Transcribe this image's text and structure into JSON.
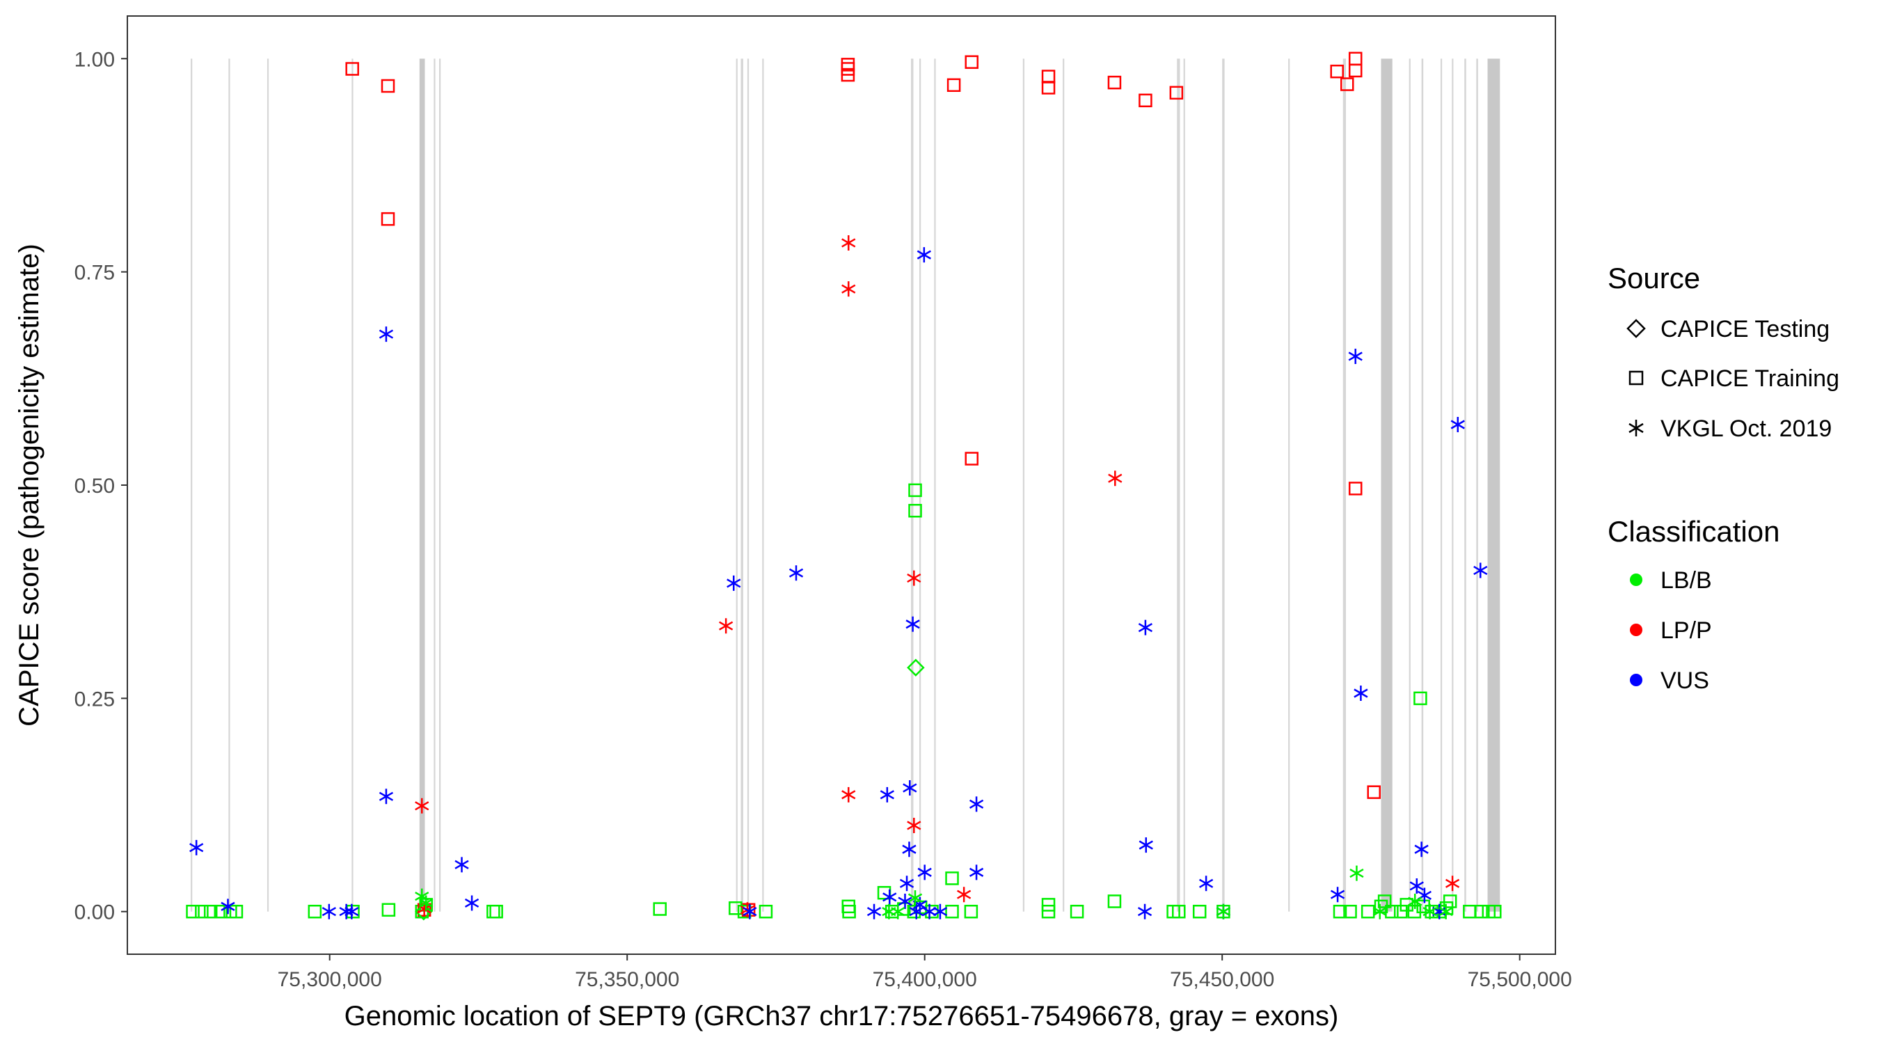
{
  "chart_data": {
    "type": "scatter",
    "xlabel": "Genomic location of SEPT9 (GRCh37 chr17:75276651-75496678, gray = exons)",
    "ylabel": "CAPICE score (pathogenicity estimate)",
    "xlim": [
      75266000,
      75506000
    ],
    "ylim": [
      -0.05,
      1.05
    ],
    "x_ticks": [
      75300000,
      75350000,
      75400000,
      75450000,
      75500000
    ],
    "x_tick_labels": [
      "75,300,000",
      "75,350,000",
      "75,400,000",
      "75,450,000",
      "75,500,000"
    ],
    "y_ticks": [
      0,
      0.25,
      0.5,
      0.75,
      1.0
    ],
    "y_tick_labels": [
      "0.00",
      "0.25",
      "0.50",
      "0.75",
      "1.00"
    ],
    "grid": false,
    "legend_position": "right",
    "legend": {
      "source_title": "Source",
      "source_items": [
        {
          "label": "CAPICE Testing",
          "shape": "diamond"
        },
        {
          "label": "CAPICE Training",
          "shape": "square"
        },
        {
          "label": "VKGL Oct. 2019",
          "shape": "asterisk"
        }
      ],
      "class_title": "Classification",
      "class_items": [
        {
          "label": "LB/B",
          "color": "#00ee00"
        },
        {
          "label": "LP/P",
          "color": "#ff0000"
        },
        {
          "label": "VUS",
          "color": "#0000ff"
        }
      ]
    },
    "exons": [
      {
        "start": 75276651,
        "end": 75276900
      },
      {
        "start": 75283000,
        "end": 75283200
      },
      {
        "start": 75289500,
        "end": 75289700
      },
      {
        "start": 75303700,
        "end": 75303950
      },
      {
        "start": 75315100,
        "end": 75316000
      },
      {
        "start": 75317500,
        "end": 75317700
      },
      {
        "start": 75318400,
        "end": 75318600
      },
      {
        "start": 75368300,
        "end": 75368500
      },
      {
        "start": 75369100,
        "end": 75369500
      },
      {
        "start": 75370200,
        "end": 75370400
      },
      {
        "start": 75372700,
        "end": 75372900
      },
      {
        "start": 75397700,
        "end": 75398100
      },
      {
        "start": 75399100,
        "end": 75399300
      },
      {
        "start": 75401600,
        "end": 75401800
      },
      {
        "start": 75416500,
        "end": 75416700
      },
      {
        "start": 75423200,
        "end": 75423400
      },
      {
        "start": 75442400,
        "end": 75442900
      },
      {
        "start": 75443500,
        "end": 75443700
      },
      {
        "start": 75450000,
        "end": 75450400
      },
      {
        "start": 75461100,
        "end": 75461300
      },
      {
        "start": 75470300,
        "end": 75470800
      },
      {
        "start": 75476700,
        "end": 75478600
      },
      {
        "start": 75481400,
        "end": 75481600
      },
      {
        "start": 75483500,
        "end": 75483800
      },
      {
        "start": 75486700,
        "end": 75486900
      },
      {
        "start": 75488600,
        "end": 75488800
      },
      {
        "start": 75490700,
        "end": 75491000
      },
      {
        "start": 75492700,
        "end": 75493000
      },
      {
        "start": 75494600,
        "end": 75496678
      }
    ],
    "series": [
      {
        "name": "CAPICE Training / LP/P",
        "shape": "square",
        "color": "#ff0000",
        "points": [
          [
            75303800,
            0.988
          ],
          [
            75309800,
            0.968
          ],
          [
            75309800,
            0.812
          ],
          [
            75387100,
            0.993
          ],
          [
            75387100,
            0.981
          ],
          [
            75387100,
            0.988
          ],
          [
            75404900,
            0.969
          ],
          [
            75407900,
            0.996
          ],
          [
            75407900,
            0.531
          ],
          [
            75420800,
            0.979
          ],
          [
            75420800,
            0.966
          ],
          [
            75431900,
            0.972
          ],
          [
            75437100,
            0.951
          ],
          [
            75442300,
            0.96
          ],
          [
            75469300,
            0.985
          ],
          [
            75471000,
            0.97
          ],
          [
            75472400,
            1.0
          ],
          [
            75472400,
            0.986
          ],
          [
            75472400,
            0.496
          ],
          [
            75475500,
            0.14
          ],
          [
            75315900,
            0.002
          ],
          [
            75370400,
            0.002
          ]
        ]
      },
      {
        "name": "CAPICE Training / LB/B",
        "shape": "square",
        "color": "#00ee00",
        "points": [
          [
            75277000,
            0.0
          ],
          [
            75278500,
            0.0
          ],
          [
            75280000,
            0.0
          ],
          [
            75281700,
            0.0
          ],
          [
            75283300,
            0.0
          ],
          [
            75284300,
            0.0
          ],
          [
            75297500,
            0.0
          ],
          [
            75303900,
            0.0
          ],
          [
            75309900,
            0.002
          ],
          [
            75315500,
            0.0
          ],
          [
            75316200,
            0.008
          ],
          [
            75327500,
            0.0
          ],
          [
            75328000,
            0.0
          ],
          [
            75355500,
            0.003
          ],
          [
            75368200,
            0.004
          ],
          [
            75369700,
            0.0
          ],
          [
            75373300,
            0.0
          ],
          [
            75387200,
            0.006
          ],
          [
            75387300,
            0.0
          ],
          [
            75393200,
            0.022
          ],
          [
            75394500,
            0.0
          ],
          [
            75396500,
            0.003
          ],
          [
            75398400,
            0.494
          ],
          [
            75398400,
            0.47
          ],
          [
            75398200,
            0.0
          ],
          [
            75399300,
            0.005
          ],
          [
            75401200,
            0.0
          ],
          [
            75404600,
            0.039
          ],
          [
            75404600,
            0.0
          ],
          [
            75407800,
            0.0
          ],
          [
            75420800,
            0.008
          ],
          [
            75420800,
            0.0
          ],
          [
            75425600,
            0.0
          ],
          [
            75431900,
            0.012
          ],
          [
            75441800,
            0.0
          ],
          [
            75442700,
            0.0
          ],
          [
            75446200,
            0.0
          ],
          [
            75450200,
            0.0
          ],
          [
            75469800,
            0.0
          ],
          [
            75471500,
            0.0
          ],
          [
            75474500,
            0.0
          ],
          [
            75476700,
            0.006
          ],
          [
            75477300,
            0.012
          ],
          [
            75478500,
            0.0
          ],
          [
            75480000,
            0.0
          ],
          [
            75481000,
            0.008
          ],
          [
            75482300,
            0.0
          ],
          [
            75483300,
            0.25
          ],
          [
            75483800,
            0.006
          ],
          [
            75485200,
            0.0
          ],
          [
            75486500,
            0.0
          ],
          [
            75487700,
            0.004
          ],
          [
            75488300,
            0.012
          ],
          [
            75491600,
            0.0
          ],
          [
            75493500,
            0.0
          ],
          [
            75494800,
            0.0
          ],
          [
            75495800,
            0.0
          ]
        ]
      },
      {
        "name": "CAPICE Testing / LB/B",
        "shape": "diamond",
        "color": "#00ee00",
        "points": [
          [
            75398500,
            0.286
          ],
          [
            75315800,
            0.0
          ]
        ]
      },
      {
        "name": "VKGL Oct. 2019 / LP/P",
        "shape": "asterisk",
        "color": "#ff0000",
        "points": [
          [
            75387200,
            0.784
          ],
          [
            75387200,
            0.73
          ],
          [
            75366600,
            0.335
          ],
          [
            75387200,
            0.137
          ],
          [
            75398200,
            0.391
          ],
          [
            75398200,
            0.101
          ],
          [
            75432000,
            0.508
          ],
          [
            75315500,
            0.124
          ],
          [
            75315900,
            0.003
          ],
          [
            75370200,
            0.002
          ],
          [
            75406600,
            0.02
          ],
          [
            75488700,
            0.033
          ]
        ]
      },
      {
        "name": "VKGL Oct. 2019 / VUS",
        "shape": "asterisk",
        "color": "#0000ff",
        "points": [
          [
            75277600,
            0.075
          ],
          [
            75282900,
            0.006
          ],
          [
            75299900,
            0.0
          ],
          [
            75302800,
            0.0
          ],
          [
            75303700,
            0.0
          ],
          [
            75309500,
            0.677
          ],
          [
            75309500,
            0.135
          ],
          [
            75322200,
            0.055
          ],
          [
            75323900,
            0.01
          ],
          [
            75367900,
            0.385
          ],
          [
            75378400,
            0.397
          ],
          [
            75370600,
            0.0
          ],
          [
            75391500,
            0.0
          ],
          [
            75393700,
            0.137
          ],
          [
            75394100,
            0.017
          ],
          [
            75397500,
            0.145
          ],
          [
            75397400,
            0.073
          ],
          [
            75397000,
            0.033
          ],
          [
            75396700,
            0.012
          ],
          [
            75398000,
            0.337
          ],
          [
            75398600,
            0.0
          ],
          [
            75399200,
            0.008
          ],
          [
            75399900,
            0.77
          ],
          [
            75400000,
            0.046
          ],
          [
            75400800,
            0.0
          ],
          [
            75402600,
            0.0
          ],
          [
            75408700,
            0.126
          ],
          [
            75408700,
            0.046
          ],
          [
            75437100,
            0.333
          ],
          [
            75437200,
            0.078
          ],
          [
            75437000,
            0.0
          ],
          [
            75447300,
            0.033
          ],
          [
            75450200,
            0.0
          ],
          [
            75469400,
            0.02
          ],
          [
            75472400,
            0.651
          ],
          [
            75473300,
            0.256
          ],
          [
            75482700,
            0.03
          ],
          [
            75483500,
            0.073
          ],
          [
            75484000,
            0.019
          ],
          [
            75489600,
            0.571
          ],
          [
            75493400,
            0.4
          ],
          [
            75486500,
            0.0
          ]
        ]
      },
      {
        "name": "VKGL Oct. 2019 / LB/B",
        "shape": "asterisk",
        "color": "#00ee00",
        "points": [
          [
            75315500,
            0.018
          ],
          [
            75316200,
            0.01
          ],
          [
            75394000,
            0.0
          ],
          [
            75395500,
            0.0
          ],
          [
            75398400,
            0.016
          ],
          [
            75450200,
            0.0
          ],
          [
            75472600,
            0.045
          ],
          [
            75476500,
            0.0
          ],
          [
            75482400,
            0.012
          ],
          [
            75484900,
            0.0
          ],
          [
            75487600,
            0.0
          ]
        ]
      }
    ]
  }
}
